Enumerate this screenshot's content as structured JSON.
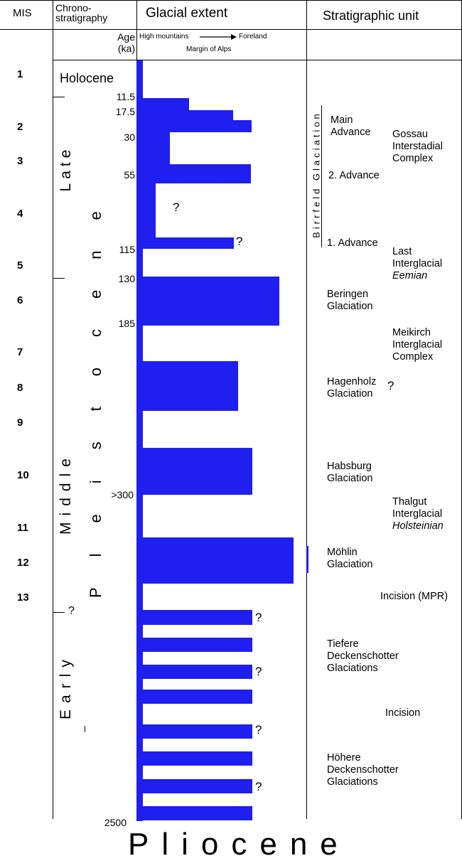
{
  "header": {
    "mis": "MIS",
    "chrono": "Chrono-\nstratigraphy",
    "glacial": "Glacial extent",
    "strat": "Stratigraphic unit",
    "age": "Age\n(ka)",
    "high_mountains": "High mountains",
    "foreland": "Foreland",
    "margin": "Margin of Alps"
  },
  "mis_numbers": [
    "1",
    "2",
    "3",
    "4",
    "5",
    "6",
    "7",
    "8",
    "9",
    "10",
    "11",
    "12",
    "13"
  ],
  "chrono": {
    "holocene": "Holocene",
    "late": "Late",
    "middle": "Middle",
    "early": "Early",
    "pleistocene": "Pleistocene",
    "pliocene": "Pliocene",
    "question": "?"
  },
  "ages": [
    "11.5",
    "17.5",
    "30",
    "55",
    "115",
    "130",
    "185",
    ">300",
    "2500"
  ],
  "units": {
    "birrfeld": "Birrfeld Glaciation",
    "main_advance": "Main\nAdvance",
    "gossau": "Gossau\nInterstadial\nComplex",
    "second_advance": "2. Advance",
    "first_advance": "1. Advance",
    "last_interglacial": "Last\nInterglacial",
    "eemian": "Eemian",
    "beringen": "Beringen\nGlaciation",
    "meikirch": "Meikirch\nInterglacial\nComplex",
    "hagenholz": "Hagenholz\nGlaciation",
    "habsburg": "Habsburg\nGlaciation",
    "thalgut": "Thalgut\nInterglacial",
    "holsteinian": "Holsteinian",
    "mohlin": "Möhlin\nGlaciation",
    "incision_mpr": "Incision (MPR)",
    "tiefere": "Tiefere\nDeckenschotter\nGlaciations",
    "incision": "Incision",
    "hohere": "Höhere\nDeckenschotter\nGlaciations"
  },
  "question_mark": "?",
  "colors": {
    "bar": "#1f1fef",
    "lines": "#000000"
  }
}
